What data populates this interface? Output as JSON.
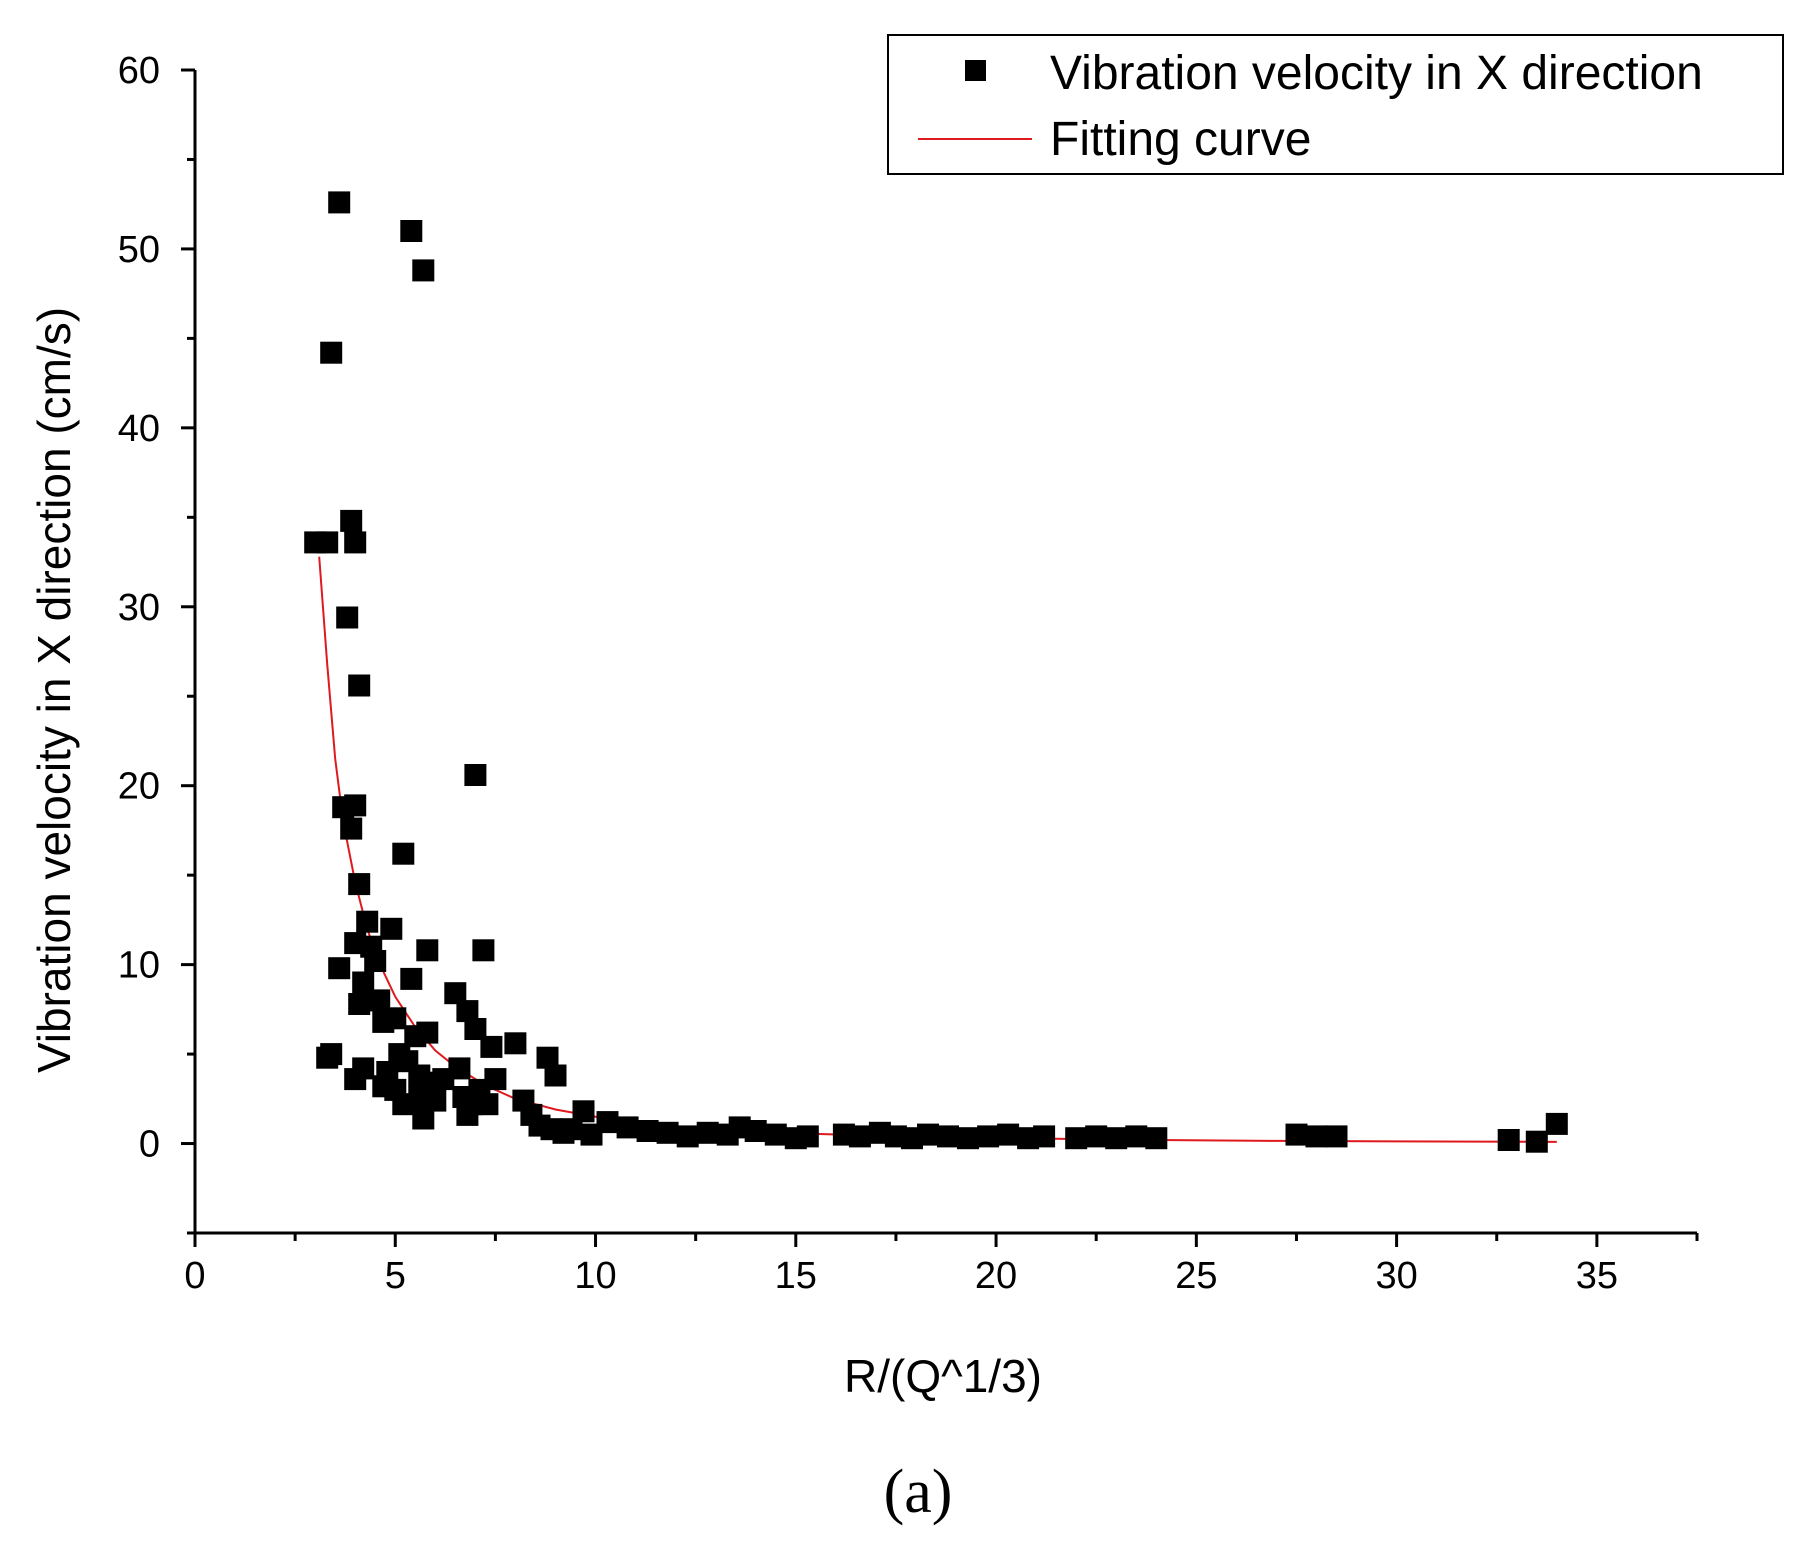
{
  "chart_data": {
    "type": "scatter",
    "title": "",
    "xlabel": "R/(Q^1/3)",
    "ylabel": "Vibration velocity in X direction (cm/s)",
    "xlim": [
      0,
      37.5
    ],
    "ylim": [
      -5,
      60
    ],
    "xticks": [
      0,
      5,
      10,
      15,
      20,
      25,
      30,
      35
    ],
    "yticks": [
      0,
      10,
      20,
      30,
      40,
      50,
      60
    ],
    "grid": false,
    "legend_position": "top-right",
    "panel_label": "(a)",
    "series": [
      {
        "name": "Vibration velocity in X direction",
        "kind": "scatter",
        "marker": "square",
        "color": "#000000",
        "points": [
          [
            3.0,
            33.6
          ],
          [
            3.3,
            33.6
          ],
          [
            3.4,
            44.2
          ],
          [
            3.6,
            52.6
          ],
          [
            3.3,
            4.8
          ],
          [
            3.4,
            5.0
          ],
          [
            3.6,
            9.8
          ],
          [
            3.7,
            18.8
          ],
          [
            3.8,
            29.4
          ],
          [
            3.9,
            17.6
          ],
          [
            3.9,
            34.8
          ],
          [
            4.0,
            33.6
          ],
          [
            4.0,
            18.9
          ],
          [
            4.0,
            3.6
          ],
          [
            4.1,
            25.6
          ],
          [
            4.1,
            14.5
          ],
          [
            4.0,
            11.2
          ],
          [
            4.1,
            7.8
          ],
          [
            4.2,
            9.0
          ],
          [
            4.2,
            4.2
          ],
          [
            4.3,
            12.4
          ],
          [
            4.4,
            11.0
          ],
          [
            4.5,
            10.2
          ],
          [
            4.6,
            8.0
          ],
          [
            4.7,
            6.8
          ],
          [
            4.7,
            3.2
          ],
          [
            4.8,
            4.0
          ],
          [
            4.9,
            12.0
          ],
          [
            5.0,
            7.0
          ],
          [
            5.0,
            3.0
          ],
          [
            5.1,
            5.0
          ],
          [
            5.2,
            16.2
          ],
          [
            5.2,
            2.2
          ],
          [
            5.3,
            4.6
          ],
          [
            5.4,
            9.2
          ],
          [
            5.4,
            51.0
          ],
          [
            5.5,
            6.0
          ],
          [
            5.6,
            2.6
          ],
          [
            5.6,
            3.8
          ],
          [
            5.7,
            48.8
          ],
          [
            5.7,
            1.4
          ],
          [
            5.8,
            10.8
          ],
          [
            5.8,
            6.2
          ],
          [
            5.9,
            3.4
          ],
          [
            6.0,
            2.4
          ],
          [
            6.2,
            3.6
          ],
          [
            6.5,
            8.4
          ],
          [
            6.6,
            4.2
          ],
          [
            6.7,
            2.6
          ],
          [
            6.8,
            7.4
          ],
          [
            6.8,
            1.6
          ],
          [
            6.9,
            2.2
          ],
          [
            7.0,
            20.6
          ],
          [
            7.0,
            6.4
          ],
          [
            7.1,
            3.0
          ],
          [
            7.2,
            10.8
          ],
          [
            7.3,
            2.2
          ],
          [
            7.4,
            5.4
          ],
          [
            7.5,
            3.6
          ],
          [
            8.0,
            5.6
          ],
          [
            8.2,
            2.4
          ],
          [
            8.4,
            1.6
          ],
          [
            8.6,
            1.0
          ],
          [
            8.8,
            4.8
          ],
          [
            8.9,
            0.8
          ],
          [
            9.0,
            3.8
          ],
          [
            9.2,
            0.6
          ],
          [
            9.4,
            0.8
          ],
          [
            9.7,
            1.8
          ],
          [
            9.9,
            0.5
          ],
          [
            10.3,
            1.2
          ],
          [
            10.8,
            0.9
          ],
          [
            11.3,
            0.7
          ],
          [
            11.8,
            0.6
          ],
          [
            12.3,
            0.4
          ],
          [
            12.8,
            0.6
          ],
          [
            13.3,
            0.5
          ],
          [
            13.6,
            0.9
          ],
          [
            14.0,
            0.7
          ],
          [
            14.5,
            0.5
          ],
          [
            15.0,
            0.3
          ],
          [
            15.3,
            0.4
          ],
          [
            16.2,
            0.5
          ],
          [
            16.6,
            0.4
          ],
          [
            17.1,
            0.6
          ],
          [
            17.5,
            0.4
          ],
          [
            17.9,
            0.3
          ],
          [
            18.3,
            0.5
          ],
          [
            18.8,
            0.4
          ],
          [
            19.3,
            0.3
          ],
          [
            19.8,
            0.4
          ],
          [
            20.3,
            0.5
          ],
          [
            20.8,
            0.3
          ],
          [
            21.2,
            0.4
          ],
          [
            22.0,
            0.3
          ],
          [
            22.5,
            0.4
          ],
          [
            23.0,
            0.3
          ],
          [
            23.5,
            0.4
          ],
          [
            24.0,
            0.3
          ],
          [
            27.5,
            0.5
          ],
          [
            28.0,
            0.4
          ],
          [
            28.5,
            0.4
          ],
          [
            32.8,
            0.2
          ],
          [
            33.5,
            0.1
          ],
          [
            34.0,
            1.1
          ]
        ]
      },
      {
        "name": "Fitting curve",
        "kind": "line",
        "color": "#e0191e",
        "points": [
          [
            3.1,
            32.8
          ],
          [
            3.3,
            26.8
          ],
          [
            3.5,
            21.5
          ],
          [
            3.7,
            18.0
          ],
          [
            4.0,
            14.6
          ],
          [
            4.3,
            12.0
          ],
          [
            4.6,
            10.1
          ],
          [
            5.0,
            8.2
          ],
          [
            5.5,
            6.5
          ],
          [
            6.0,
            5.2
          ],
          [
            6.5,
            4.3
          ],
          [
            7.0,
            3.6
          ],
          [
            7.5,
            3.0
          ],
          [
            8.0,
            2.5
          ],
          [
            9.0,
            1.9
          ],
          [
            10.0,
            1.5
          ],
          [
            11.0,
            1.2
          ],
          [
            12.0,
            0.95
          ],
          [
            13.0,
            0.8
          ],
          [
            14.0,
            0.67
          ],
          [
            15.0,
            0.58
          ],
          [
            17.0,
            0.44
          ],
          [
            19.0,
            0.35
          ],
          [
            21.0,
            0.28
          ],
          [
            24.0,
            0.2
          ],
          [
            27.0,
            0.15
          ],
          [
            30.0,
            0.12
          ],
          [
            34.0,
            0.09
          ]
        ]
      }
    ]
  }
}
